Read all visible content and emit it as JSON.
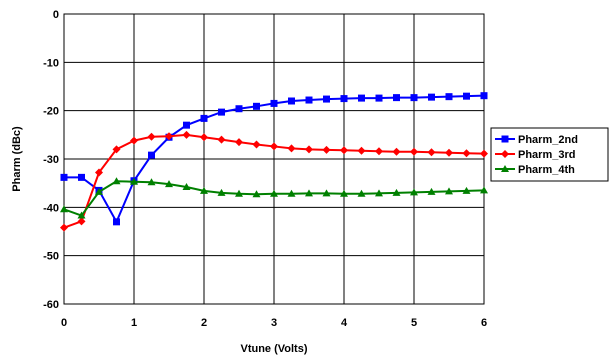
{
  "chart_data": {
    "type": "line",
    "xlabel": "Vtune (Volts)",
    "ylabel": "Pharm (dBc)",
    "xlim": [
      0,
      6
    ],
    "ylim": [
      -60,
      0
    ],
    "xticks": [
      0,
      1,
      2,
      3,
      4,
      5,
      6
    ],
    "yticks": [
      0,
      -10,
      -20,
      -30,
      -40,
      -50,
      -60
    ],
    "grid": true,
    "legend_position": "right",
    "x": [
      0,
      0.25,
      0.5,
      0.75,
      1.0,
      1.25,
      1.5,
      1.75,
      2.0,
      2.25,
      2.5,
      2.75,
      3.0,
      3.25,
      3.5,
      3.75,
      4.0,
      4.25,
      4.5,
      4.75,
      5.0,
      5.25,
      5.5,
      5.75,
      6.0
    ],
    "series": [
      {
        "name": "Pharm_2nd",
        "color": "#0000ff",
        "marker": "square",
        "values": [
          -33.8,
          -33.8,
          -36.5,
          -43.0,
          -34.5,
          -29.2,
          -25.5,
          -23.0,
          -21.6,
          -20.3,
          -19.6,
          -19.1,
          -18.5,
          -18.0,
          -17.8,
          -17.6,
          -17.5,
          -17.4,
          -17.4,
          -17.3,
          -17.3,
          -17.2,
          -17.1,
          -17.0,
          -16.9
        ]
      },
      {
        "name": "Pharm_3rd",
        "color": "#ff0000",
        "marker": "diamond",
        "values": [
          -44.2,
          -42.9,
          -32.8,
          -28.0,
          -26.2,
          -25.4,
          -25.3,
          -25.0,
          -25.5,
          -26.0,
          -26.5,
          -27.0,
          -27.4,
          -27.8,
          -28.0,
          -28.1,
          -28.2,
          -28.3,
          -28.4,
          -28.5,
          -28.5,
          -28.6,
          -28.7,
          -28.8,
          -28.9
        ]
      },
      {
        "name": "Pharm_4th",
        "color": "#008000",
        "marker": "triangle",
        "values": [
          -40.4,
          -41.7,
          -36.8,
          -34.6,
          -34.7,
          -34.8,
          -35.2,
          -35.8,
          -36.6,
          -37.0,
          -37.2,
          -37.3,
          -37.2,
          -37.2,
          -37.1,
          -37.1,
          -37.2,
          -37.2,
          -37.1,
          -37.0,
          -36.9,
          -36.8,
          -36.7,
          -36.6,
          -36.5
        ]
      }
    ]
  },
  "axes": {
    "xlabel": "Vtune (Volts)",
    "ylabel": "Pharm (dBc)"
  }
}
